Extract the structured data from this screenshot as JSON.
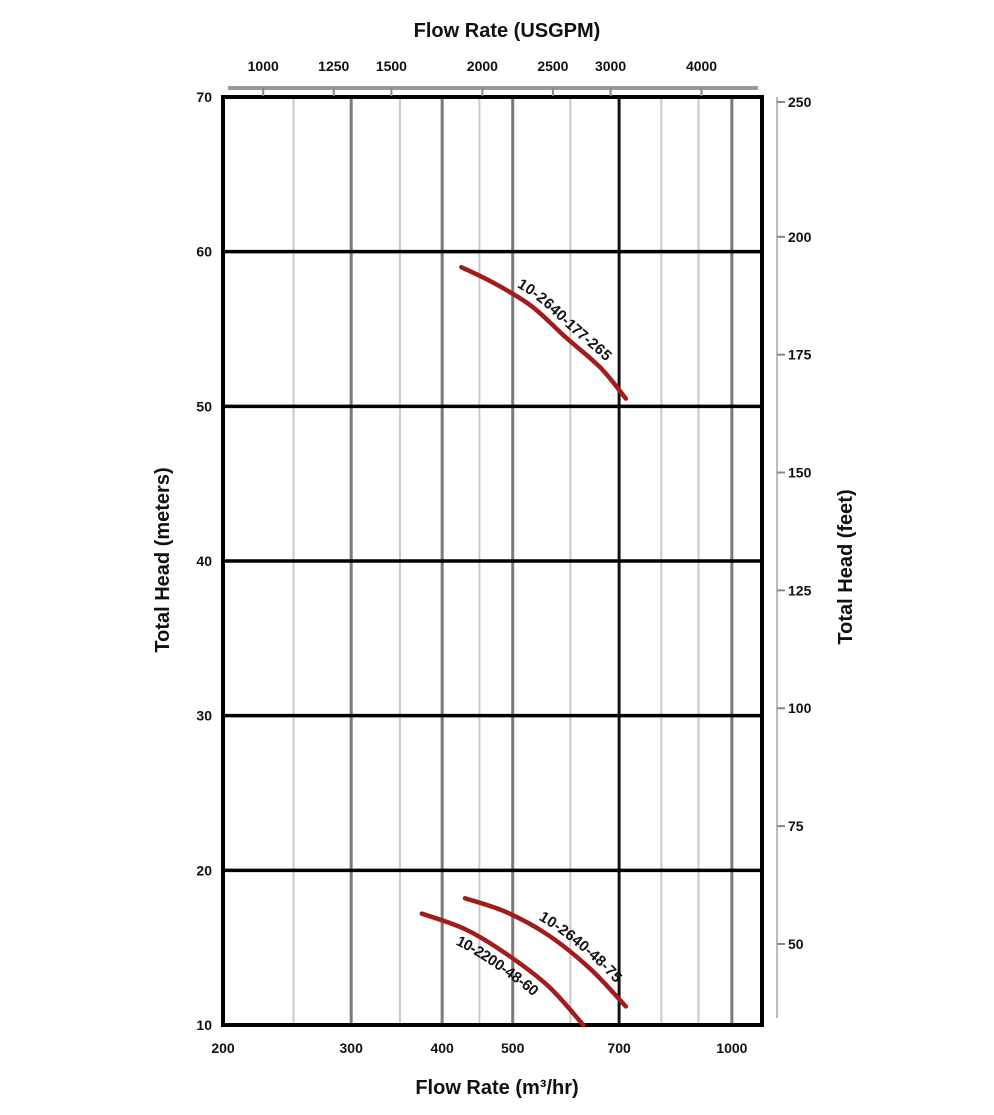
{
  "chart_data": {
    "type": "line",
    "x_axis": {
      "label": "Flow Rate (m³/hr)",
      "scale": "log",
      "range": [
        200,
        1100
      ],
      "ticks": [
        200,
        300,
        400,
        500,
        700,
        1000
      ],
      "minor_gridlines": [
        250,
        350,
        450,
        600,
        800,
        900
      ]
    },
    "x2_axis": {
      "label": "Flow Rate (USGPM)",
      "ticks": [
        1000,
        1250,
        1500,
        2000,
        2500,
        3000,
        4000
      ]
    },
    "y_axis": {
      "label": "Total Head (meters)",
      "range": [
        10,
        70
      ],
      "ticks": [
        10,
        20,
        30,
        40,
        50,
        60,
        70
      ]
    },
    "y2_axis": {
      "label": "Total Head (feet)",
      "ticks": [
        50,
        75,
        100,
        125,
        150,
        175,
        200,
        250
      ]
    },
    "grid": true,
    "series": [
      {
        "name": "10-2640-177-265",
        "color": "#a11d1d",
        "points": [
          [
            425,
            59
          ],
          [
            470,
            58
          ],
          [
            530,
            56.5
          ],
          [
            590,
            54.5
          ],
          [
            660,
            52.5
          ],
          [
            715,
            50.5
          ]
        ]
      },
      {
        "name": "10-2640-48-75",
        "color": "#a11d1d",
        "points": [
          [
            430,
            18.2
          ],
          [
            490,
            17.3
          ],
          [
            560,
            15.8
          ],
          [
            640,
            13.6
          ],
          [
            715,
            11.2
          ]
        ]
      },
      {
        "name": "10-2200-48-60",
        "color": "#a11d1d",
        "points": [
          [
            375,
            17.2
          ],
          [
            430,
            16.2
          ],
          [
            490,
            14.6
          ],
          [
            560,
            12.5
          ],
          [
            625,
            10
          ]
        ]
      }
    ]
  }
}
